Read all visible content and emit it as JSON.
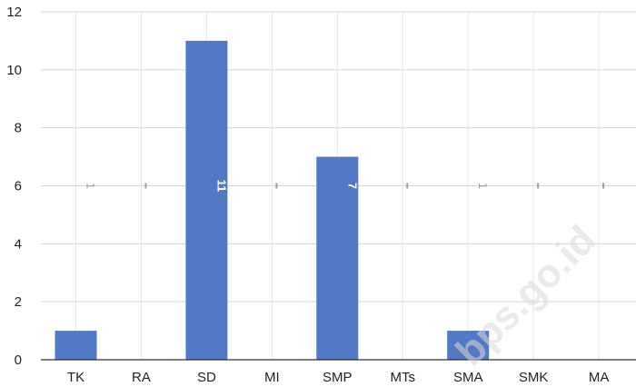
{
  "chart_data": {
    "type": "bar",
    "categories": [
      "TK",
      "RA",
      "SD",
      "MI",
      "SMP",
      "MTs",
      "SMA",
      "SMK",
      "MA"
    ],
    "values": [
      1,
      0,
      11,
      0,
      7,
      0,
      1,
      0,
      0
    ],
    "data_labels": [
      "1",
      "",
      "11",
      "",
      "7",
      "",
      "1",
      "",
      ""
    ],
    "ylim": [
      0,
      12
    ],
    "yticks": [
      "0",
      "2",
      "4",
      "6",
      "8",
      "10",
      "12"
    ],
    "grid": true,
    "bar_color": "#5279c4",
    "title": "",
    "xlabel": "",
    "ylabel": ""
  },
  "watermark": "bps.go.id"
}
